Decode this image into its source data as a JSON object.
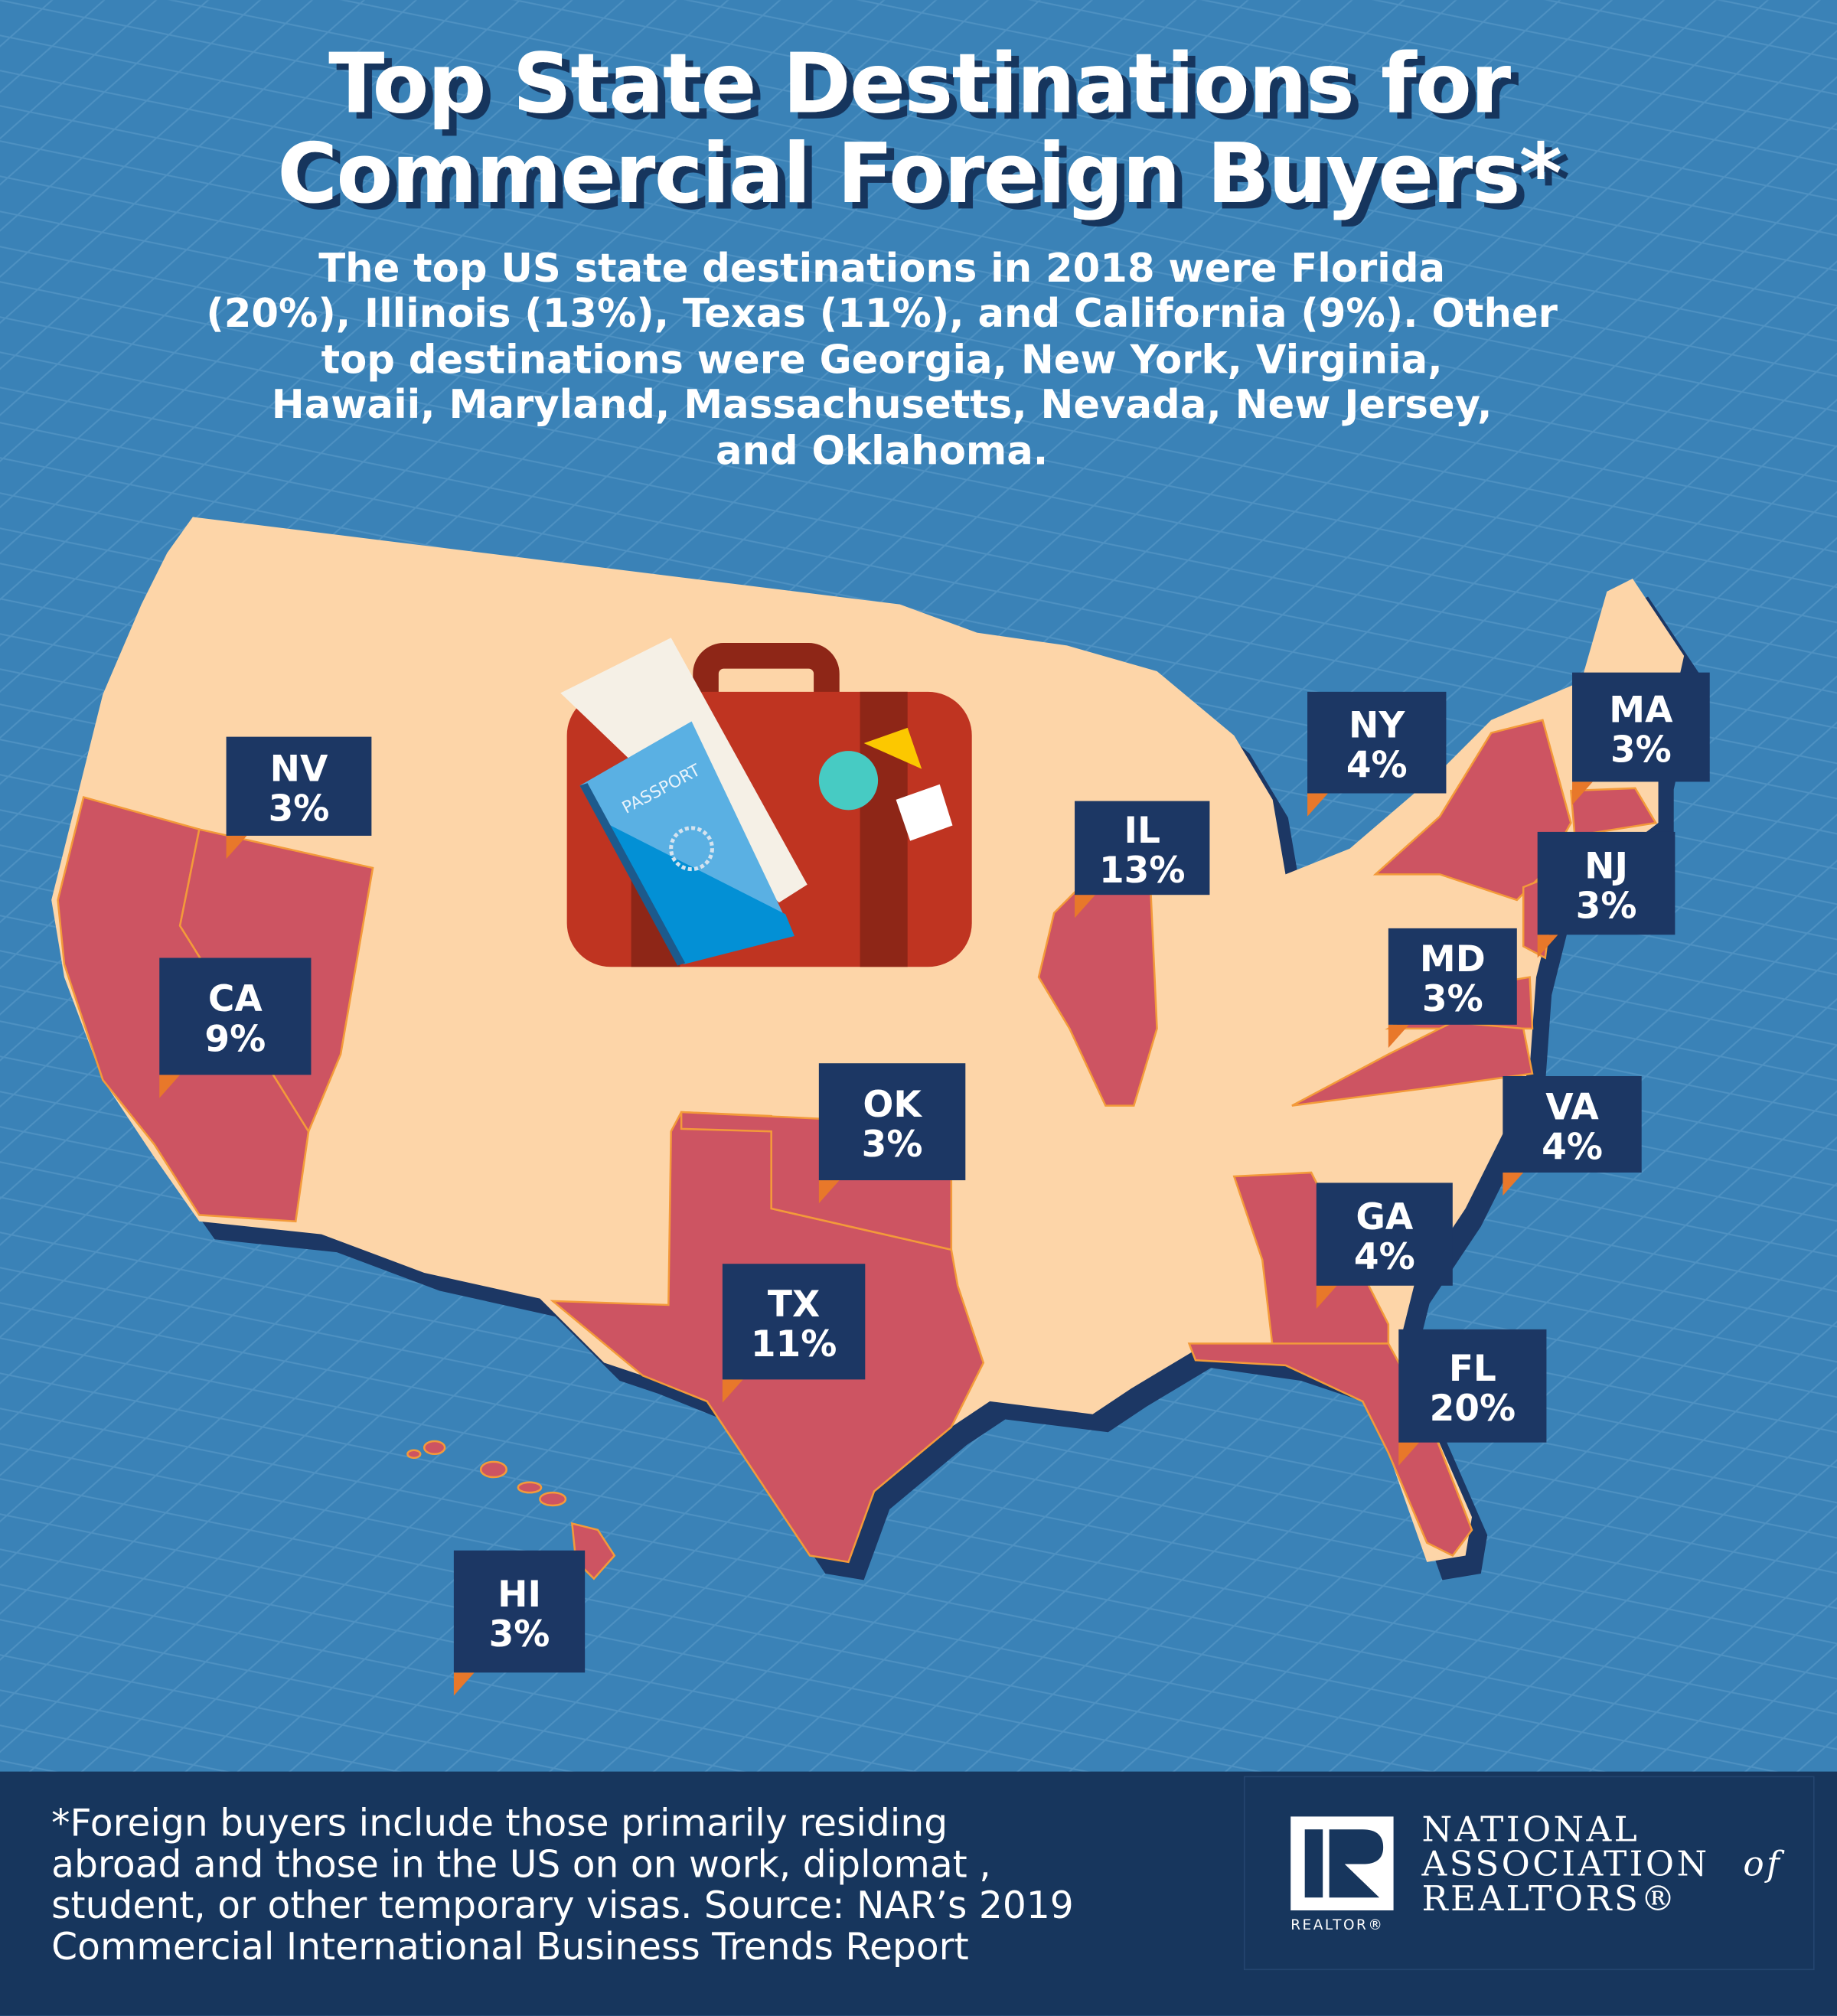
{
  "header": {
    "title_lines": [
      "Top State Destinations for",
      "Commercial Foreign Buyers*"
    ],
    "subtitle_lines": [
      "The top US state destinations in 2018 were Florida",
      "(20%), Illinois (13%), Texas (11%), and California (9%). Other",
      "top destinations were Georgia, New York, Virginia,",
      "Hawaii, Maryland, Massachusetts, Nevada, New Jersey,",
      "and Oklahoma."
    ]
  },
  "illustration": {
    "passport_text": "PASSPORT",
    "icon": "suitcase-with-passport-icon"
  },
  "states": [
    {
      "code": "NV",
      "share": "3%"
    },
    {
      "code": "CA",
      "share": "9%"
    },
    {
      "code": "IL",
      "share": "13%"
    },
    {
      "code": "NY",
      "share": "4%"
    },
    {
      "code": "MA",
      "share": "3%"
    },
    {
      "code": "NJ",
      "share": "3%"
    },
    {
      "code": "MD",
      "share": "3%"
    },
    {
      "code": "VA",
      "share": "4%"
    },
    {
      "code": "GA",
      "share": "4%"
    },
    {
      "code": "FL",
      "share": "20%"
    },
    {
      "code": "OK",
      "share": "3%"
    },
    {
      "code": "TX",
      "share": "11%"
    },
    {
      "code": "HI",
      "share": "3%"
    }
  ],
  "footer": {
    "note_lines": [
      "*Foreign buyers include those primarily residing",
      "abroad and those in the US on on work, diplomat ,",
      "student, or other temporary visas. Source: NAR’s 2019",
      "Commercial International Business Trends Report"
    ],
    "logo": {
      "mark_text": "REALTOR®",
      "org_lines": [
        "NATIONAL",
        "ASSOCIATION",
        "of",
        "REALTORS®"
      ]
    }
  },
  "colors": {
    "background": "#3a82b7",
    "land": "#fdd5a8",
    "highlight": "#cd5462",
    "label_box": "#1c3764",
    "footer": "#17365d",
    "accent": "#e8782a"
  }
}
